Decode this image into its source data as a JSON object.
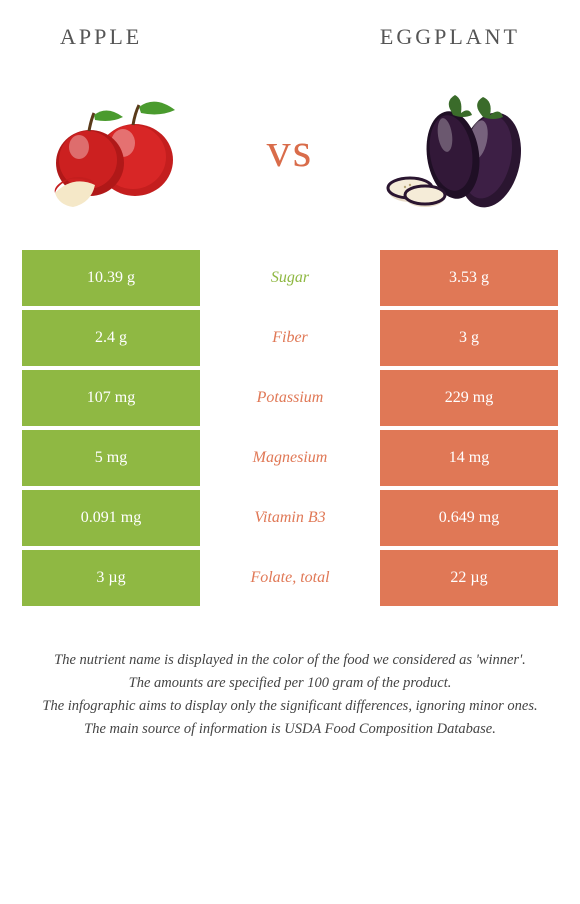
{
  "header": {
    "left": "Apple",
    "right": "Eggplant"
  },
  "vs": "vs",
  "colors": {
    "left_bg": "#8fb843",
    "right_bg": "#e07856",
    "mid_green": "#8fb843",
    "mid_orange": "#e07856"
  },
  "rows": [
    {
      "left": "10.39 g",
      "mid": "Sugar",
      "right": "3.53 g",
      "winner": "left"
    },
    {
      "left": "2.4 g",
      "mid": "Fiber",
      "right": "3 g",
      "winner": "right"
    },
    {
      "left": "107 mg",
      "mid": "Potassium",
      "right": "229 mg",
      "winner": "right"
    },
    {
      "left": "5 mg",
      "mid": "Magnesium",
      "right": "14 mg",
      "winner": "right"
    },
    {
      "left": "0.091 mg",
      "mid": "Vitamin B3",
      "right": "0.649 mg",
      "winner": "right"
    },
    {
      "left": "3 µg",
      "mid": "Folate, total",
      "right": "22 µg",
      "winner": "right"
    }
  ],
  "footer": {
    "line1": "The nutrient name is displayed in the color of the food we considered as 'winner'.",
    "line2": "The amounts are specified per 100 gram of the product.",
    "line3": "The infographic aims to display only the significant differences, ignoring minor ones.",
    "line4": "The main source of information is USDA Food Composition Database."
  }
}
